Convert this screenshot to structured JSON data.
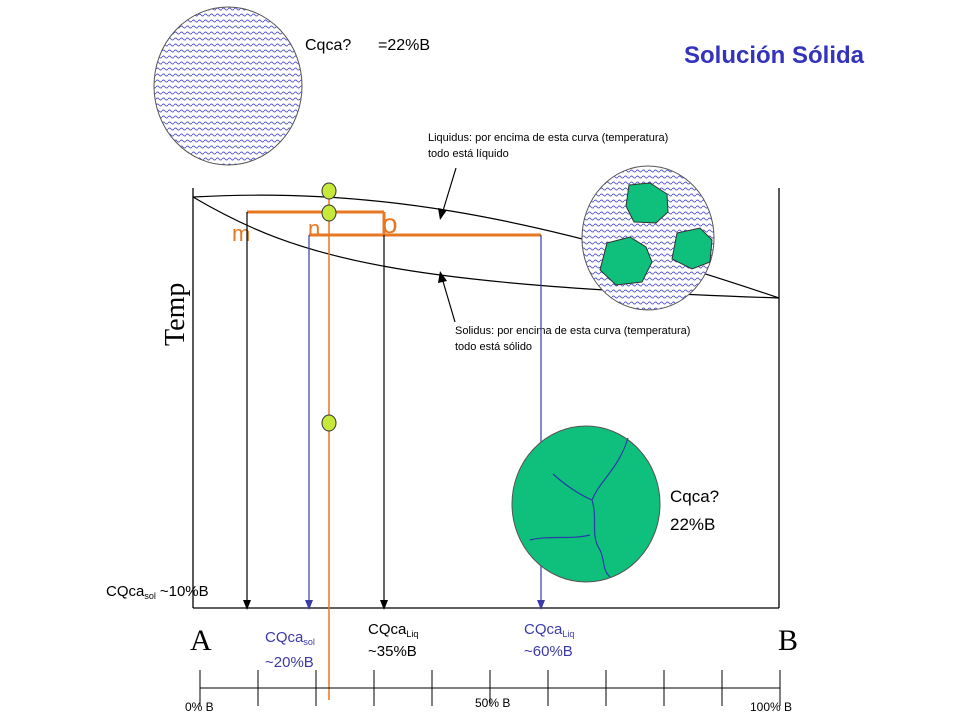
{
  "title": "Solución Sólida",
  "axis": {
    "y_label": "Temp",
    "left_component": "A",
    "right_component": "B",
    "scale_labels": [
      "0% B",
      "50% B",
      "100% B"
    ]
  },
  "notes": {
    "liquidus_line1": "Liquidus: por encima de esta curva (temperatura)",
    "liquidus_line2": "todo está líquido",
    "solidus_line1": "Solidus: por encima de esta curva (temperatura)",
    "solidus_line2": "todo está sólido"
  },
  "points": {
    "m": "m",
    "n": "n",
    "o": "o"
  },
  "top_composition": {
    "label": "Cqca?",
    "value": "=22%B"
  },
  "solid_composition": {
    "line1": "Cqca?",
    "line2": "22%B"
  },
  "compositions": {
    "m_sol": {
      "base": "CQca",
      "sub": "sol",
      "value": "~10%B"
    },
    "n_sol": {
      "base": "CQca",
      "sub": "sol",
      "value": "~20%B"
    },
    "o_liq": {
      "base": "CQca",
      "sub": "Liq",
      "value": "~35%B"
    },
    "n_liq": {
      "base": "CQca",
      "sub": "Liq",
      "value": "~60%B"
    }
  },
  "colors": {
    "title": "#3333bb",
    "orange": "#e87722",
    "blue_line": "#3a3aa8",
    "crystal_green": "#0fbf7c",
    "dot_fill": "#c6e83a",
    "liquid_texture": "#5555cc"
  }
}
